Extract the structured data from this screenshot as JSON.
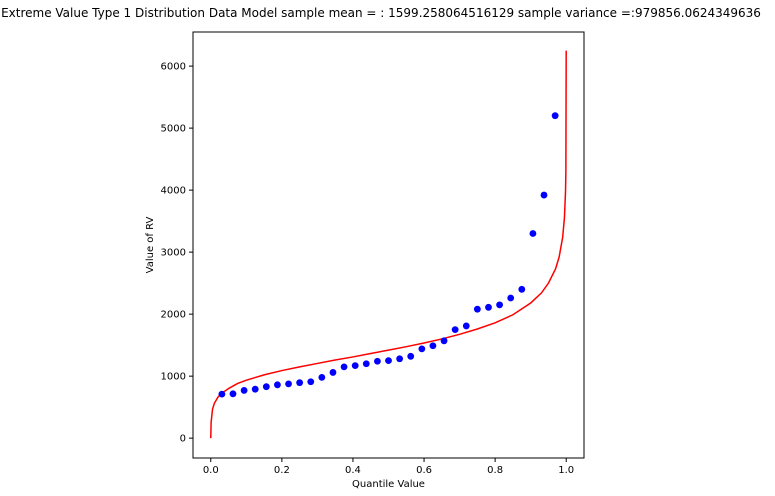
{
  "chart_data": {
    "type": "scatter",
    "title": "Extreme Value Type 1 Distribution Data Model sample mean = : 1599.258064516129 sample variance =:979856.0624349636",
    "xlabel": "Quantile Value",
    "ylabel": "Value of RV",
    "xlim": [
      -0.05,
      1.05
    ],
    "ylim": [
      -320,
      6550
    ],
    "x_ticks": [
      0.0,
      0.2,
      0.4,
      0.6,
      0.8,
      1.0
    ],
    "x_tick_labels": [
      "0.0",
      "0.2",
      "0.4",
      "0.6",
      "0.8",
      "1.0"
    ],
    "y_ticks": [
      0,
      1000,
      2000,
      3000,
      4000,
      5000,
      6000
    ],
    "y_tick_labels": [
      "0",
      "1000",
      "2000",
      "3000",
      "4000",
      "5000",
      "6000"
    ],
    "grid": false,
    "series": [
      {
        "kind": "points",
        "color": "#0000ff",
        "x": [
          0.0313,
          0.0625,
          0.0938,
          0.125,
          0.1563,
          0.1875,
          0.2188,
          0.25,
          0.2813,
          0.3125,
          0.3438,
          0.375,
          0.4063,
          0.4375,
          0.4688,
          0.5,
          0.5313,
          0.5625,
          0.5938,
          0.625,
          0.6563,
          0.6875,
          0.7188,
          0.75,
          0.7813,
          0.8125,
          0.8438,
          0.875,
          0.9063,
          0.9375,
          0.9688
        ],
        "y": [
          710,
          715,
          770,
          790,
          830,
          860,
          875,
          895,
          910,
          980,
          1060,
          1150,
          1170,
          1200,
          1240,
          1250,
          1280,
          1320,
          1440,
          1490,
          1570,
          1750,
          1810,
          2080,
          2110,
          2150,
          2260,
          2400,
          3300,
          3920,
          5200
        ]
      },
      {
        "kind": "line",
        "color": "#ff0000",
        "x": [
          0.0,
          0.001,
          0.005,
          0.01,
          0.02,
          0.03,
          0.05,
          0.075,
          0.1,
          0.15,
          0.2,
          0.25,
          0.3,
          0.35,
          0.4,
          0.45,
          0.5,
          0.55,
          0.6,
          0.65,
          0.7,
          0.75,
          0.8,
          0.85,
          0.9,
          0.93,
          0.95,
          0.97,
          0.98,
          0.99,
          0.995,
          0.998,
          0.999,
          0.9999
        ],
        "y": [
          0,
          260,
          470,
          560,
          660,
          720,
          800,
          880,
          935,
          1020,
          1090,
          1150,
          1205,
          1260,
          1310,
          1365,
          1420,
          1475,
          1535,
          1600,
          1675,
          1760,
          1860,
          1990,
          2180,
          2340,
          2500,
          2730,
          2920,
          3240,
          3560,
          3980,
          4300,
          6250
        ]
      }
    ]
  }
}
